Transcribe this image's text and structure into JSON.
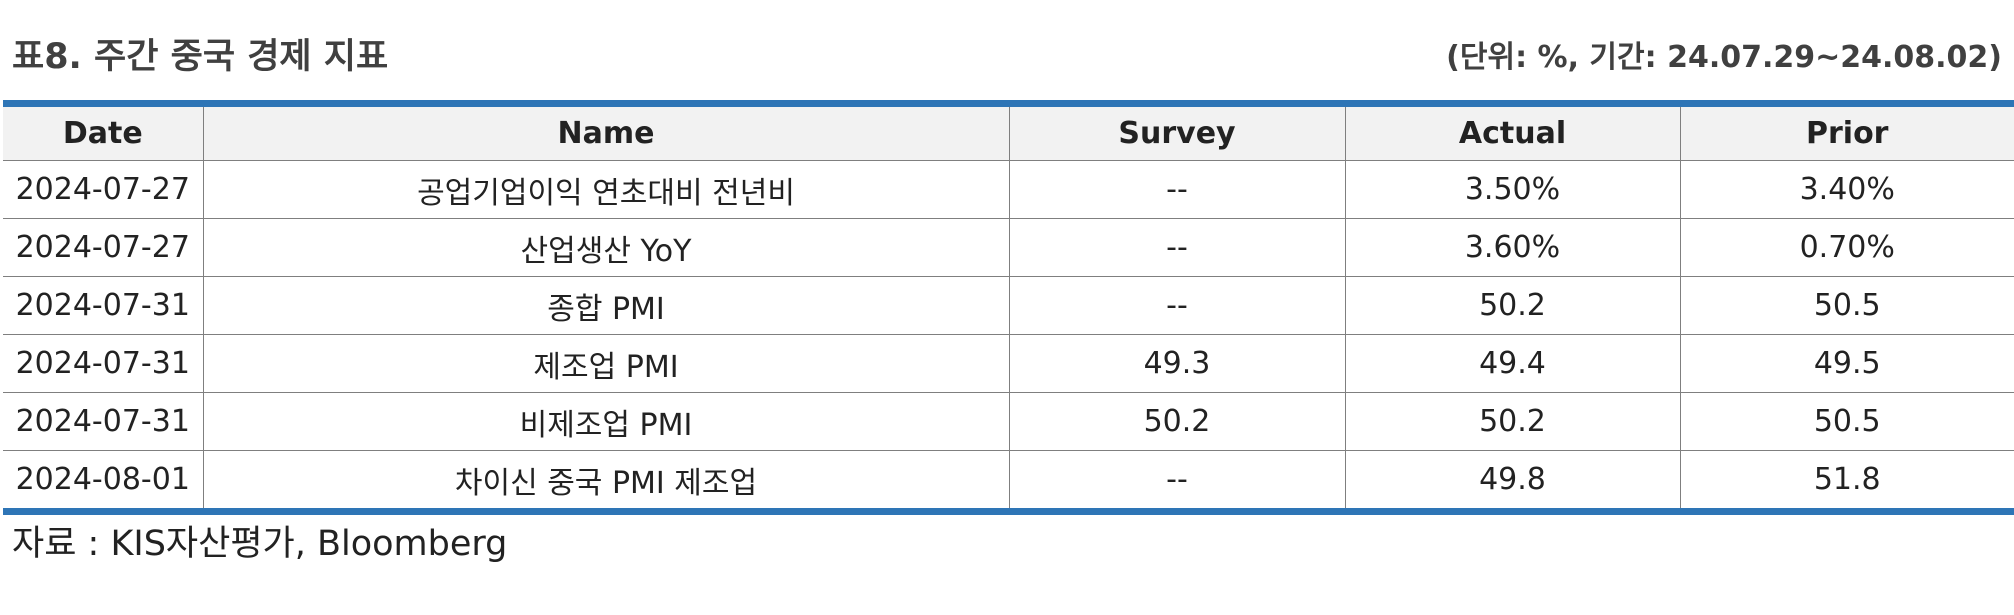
{
  "header": {
    "title": "표8. 주간 중국 경제 지표",
    "unit_note": "(단위: %, 기간: 24.07.29~24.08.02)"
  },
  "table": {
    "columns": [
      "Date",
      "Name",
      "Survey",
      "Actual",
      "Prior"
    ],
    "rows": [
      [
        "2024-07-27",
        "공업기업이익 연초대비 전년비",
        "--",
        "3.50%",
        "3.40%"
      ],
      [
        "2024-07-27",
        "산업생산 YoY",
        "--",
        "3.60%",
        "0.70%"
      ],
      [
        "2024-07-31",
        "종합 PMI",
        "--",
        "50.2",
        "50.5"
      ],
      [
        "2024-07-31",
        "제조업 PMI",
        "49.3",
        "49.4",
        "49.5"
      ],
      [
        "2024-07-31",
        "비제조업 PMI",
        "50.2",
        "50.2",
        "50.5"
      ],
      [
        "2024-08-01",
        "차이신 중국 PMI 제조업",
        "--",
        "49.8",
        "51.8"
      ]
    ]
  },
  "footer": {
    "source": "자료 : KIS자산평가, Bloomberg"
  },
  "colors": {
    "accent_rule": "#2e75b6",
    "header_fill": "#f2f2f2",
    "grid_line": "#7f7f7f"
  }
}
